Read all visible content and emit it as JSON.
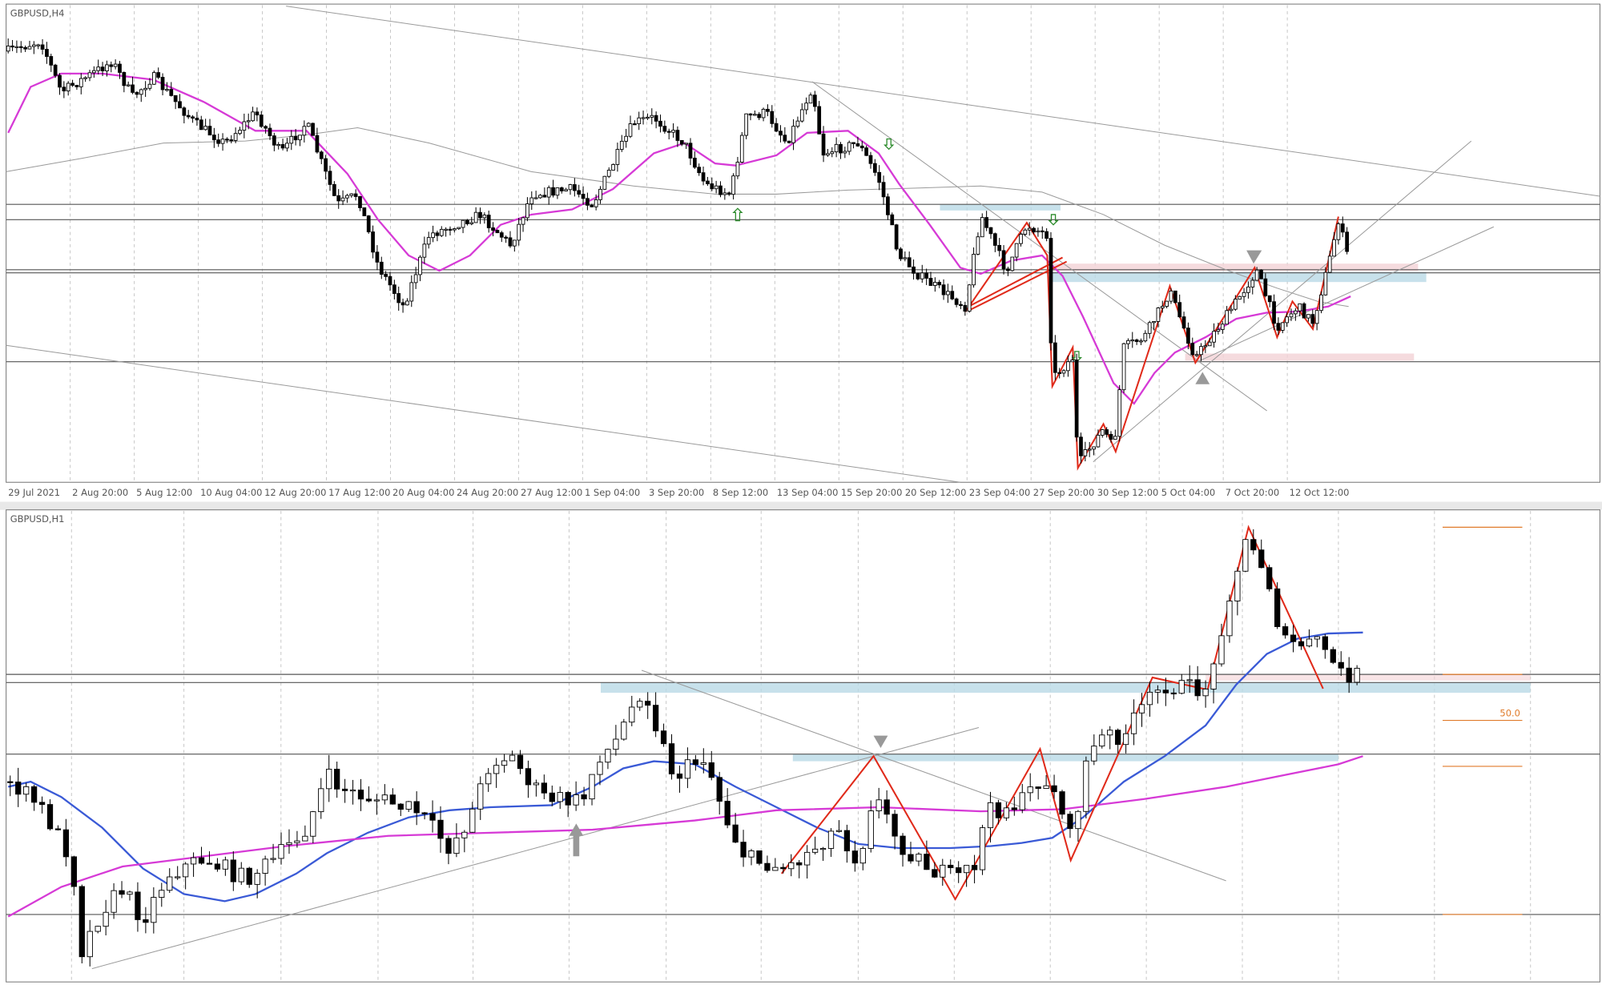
{
  "top_panel": {
    "title": "GBPUSD,H4",
    "x_labels": [
      "29 Jul 2021",
      "2 Aug 20:00",
      "5 Aug 12:00",
      "10 Aug 04:00",
      "12 Aug 20:00",
      "17 Aug 12:00",
      "20 Aug 04:00",
      "24 Aug 20:00",
      "27 Aug 12:00",
      "1 Sep 04:00",
      "3 Sep 20:00",
      "8 Sep 12:00",
      "13 Sep 04:00",
      "15 Sep 20:00",
      "20 Sep 12:00",
      "23 Sep 04:00",
      "27 Sep 20:00",
      "30 Sep 12:00",
      "5 Oct 04:00",
      "7 Oct 20:00",
      "12 Oct 12:00"
    ]
  },
  "bottom_panel": {
    "title": "GBPUSD,H1",
    "fib_label": "50.0"
  }
}
